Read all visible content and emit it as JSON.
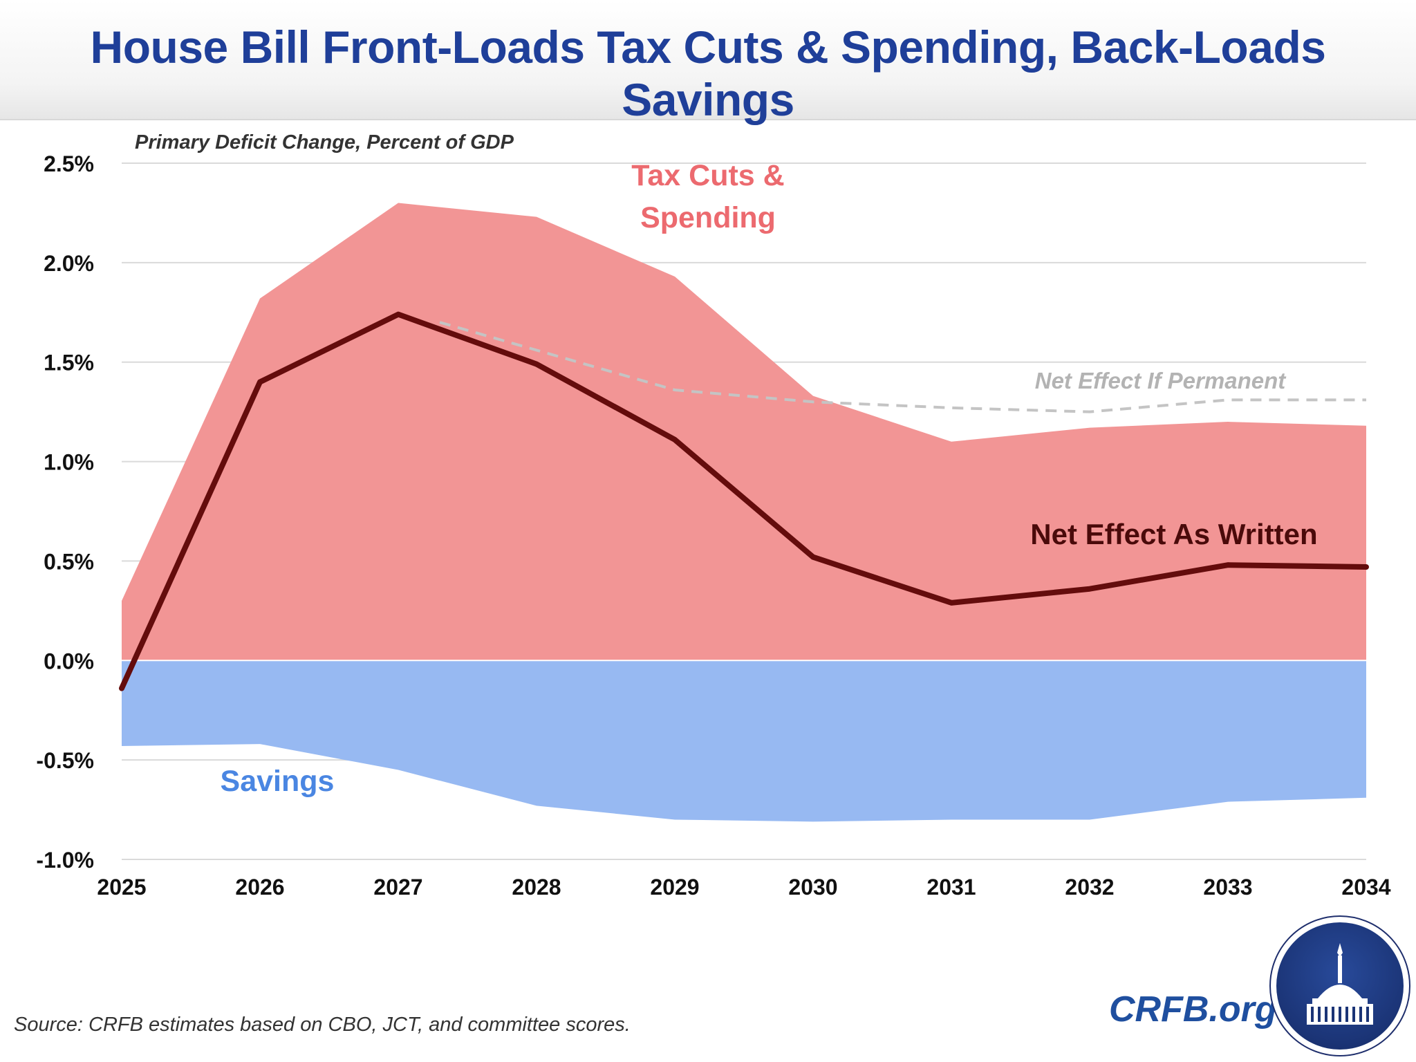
{
  "header": {
    "title": "House Bill Front-Loads Tax Cuts & Spending, Back-Loads Savings"
  },
  "colors": {
    "title": "#1f3f99",
    "tax_cuts_area": "#f29595",
    "tax_cuts_label": "#ec6a6f",
    "savings_area": "#97b9f2",
    "savings_label": "#4a86e2",
    "net_line": "#640c0c",
    "permanent_line": "#c4c4c4",
    "gridline": "#dadada"
  },
  "chart_data": {
    "type": "area",
    "ylabel": "Primary Deficit Change, Percent of GDP",
    "ylim": [
      -1.0,
      2.5
    ],
    "yticks": [
      2.5,
      2.0,
      1.5,
      1.0,
      0.5,
      0.0,
      -0.5,
      -1.0
    ],
    "ytick_labels": [
      "2.5%",
      "2.0%",
      "1.5%",
      "1.0%",
      "0.5%",
      "0.0%",
      "-0.5%",
      "-1.0%"
    ],
    "x": [
      "2025",
      "2026",
      "2027",
      "2028",
      "2029",
      "2030",
      "2031",
      "2032",
      "2033",
      "2034"
    ],
    "grid": true,
    "series": [
      {
        "name": "Tax Cuts & Spending",
        "kind": "area",
        "values": [
          0.3,
          1.82,
          2.3,
          2.23,
          1.93,
          1.33,
          1.1,
          1.17,
          1.2,
          1.18
        ]
      },
      {
        "name": "Savings",
        "kind": "area",
        "values": [
          -0.43,
          -0.42,
          -0.55,
          -0.73,
          -0.8,
          -0.81,
          -0.8,
          -0.8,
          -0.71,
          -0.69
        ]
      },
      {
        "name": "Net Effect As Written",
        "kind": "line",
        "values": [
          -0.14,
          1.4,
          1.74,
          1.49,
          1.11,
          0.52,
          0.29,
          0.36,
          0.48,
          0.47
        ]
      },
      {
        "name": "Net Effect If Permanent",
        "kind": "dashed-line",
        "x": [
          "2027.3",
          "2028",
          "2029",
          "2030",
          "2031",
          "2032",
          "2033",
          "2034"
        ],
        "values": [
          1.7,
          1.56,
          1.36,
          1.3,
          1.27,
          1.25,
          1.31,
          1.31
        ]
      }
    ]
  },
  "labels": {
    "tax_cuts_line1": "Tax Cuts &",
    "tax_cuts_line2": "Spending",
    "net_as_written": "Net Effect As Written",
    "net_if_permanent": "Net Effect If Permanent",
    "savings": "Savings"
  },
  "footer": {
    "source": "Source: CRFB estimates based on CBO, JCT, and committee scores.",
    "brand": "CRFB.org"
  }
}
